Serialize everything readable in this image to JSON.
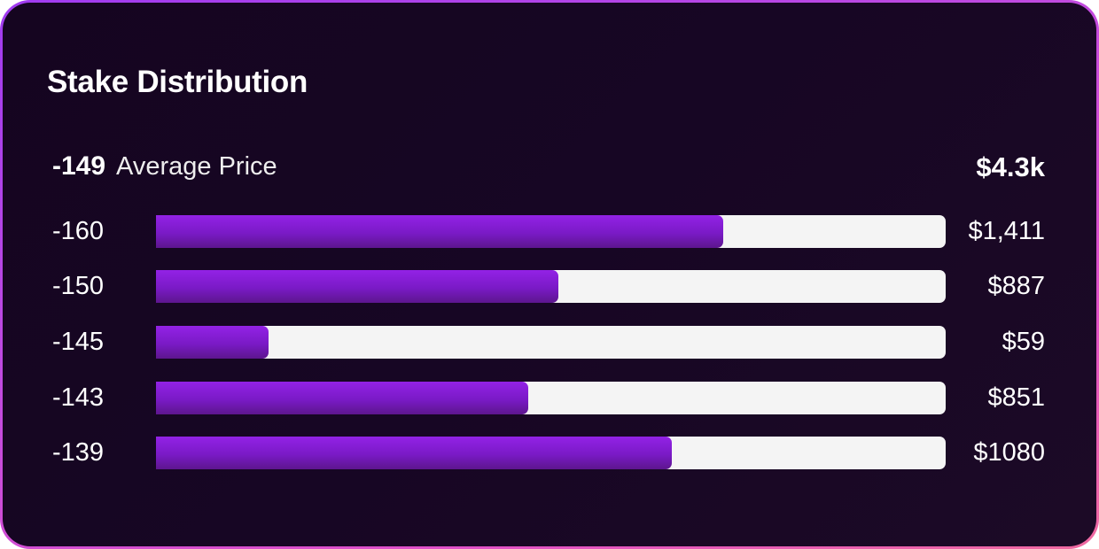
{
  "card": {
    "title": "Stake Distribution",
    "average_value": "-149",
    "average_label": "Average Price",
    "total": "$4.3k"
  },
  "colors": {
    "bar_fill": "#8a1fe0",
    "bar_track": "#f4f4f4",
    "background": "#160522",
    "border_start": "#a03cf0",
    "border_end": "#f06aa0"
  },
  "rows": [
    {
      "label": "-160",
      "value": "$1,411",
      "pct": 71.8
    },
    {
      "label": "-150",
      "value": "$887",
      "pct": 50.9
    },
    {
      "label": "-145",
      "value": "$59",
      "pct": 14.2
    },
    {
      "label": "-143",
      "value": "$851",
      "pct": 47.1
    },
    {
      "label": "-139",
      "value": "$1080",
      "pct": 65.3
    }
  ],
  "chart_data": {
    "type": "bar",
    "orientation": "horizontal",
    "title": "Stake Distribution",
    "categories": [
      "-160",
      "-150",
      "-145",
      "-143",
      "-139"
    ],
    "values": [
      1411,
      887,
      59,
      851,
      1080
    ],
    "value_labels": [
      "$1,411",
      "$887",
      "$59",
      "$851",
      "$1080"
    ],
    "summary": {
      "average_price": -149,
      "average_label": "Average Price",
      "total": "$4.3k"
    },
    "xlabel": "",
    "ylabel": "",
    "grid": false,
    "legend": null
  }
}
